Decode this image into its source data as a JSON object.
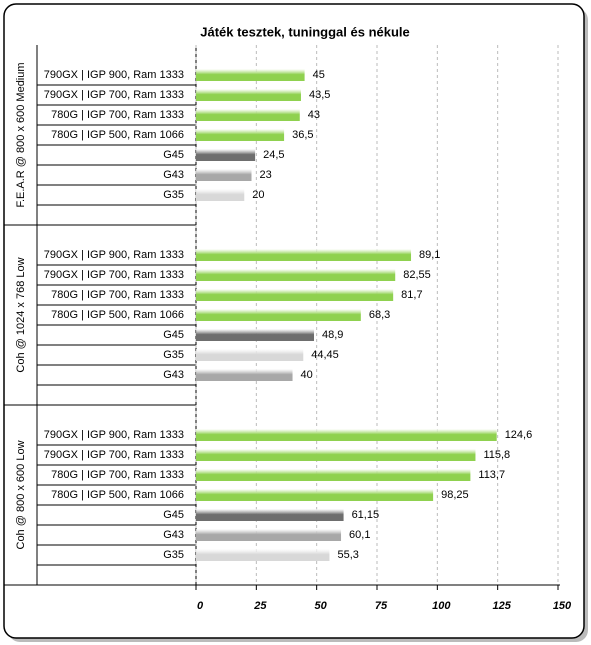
{
  "chart_data": {
    "type": "bar",
    "title": "Játék tesztek, tuninggal és nékule",
    "groups": [
      {
        "name": "F.E.A.R @ 800 x 600 Medium",
        "categories": [
          "790GX | IGP 900, Ram 1333",
          "790GX | IGP 700, Ram 1333",
          "780G | IGP 700, Ram 1333",
          "780G | IGP 500, Ram 1066",
          "G45",
          "G43",
          "G35"
        ],
        "values": [
          45,
          43.5,
          43,
          36.5,
          24.5,
          23,
          20
        ],
        "value_labels": [
          "45",
          "43,5",
          "43",
          "36,5",
          "24,5",
          "23",
          "20"
        ],
        "colors": [
          "#8fd14f",
          "#8fd14f",
          "#8fd14f",
          "#8fd14f",
          "#6e6e6e",
          "#a8a8a8",
          "#d8d8d8"
        ]
      },
      {
        "name": "Coh @ 1024 x 768 Low",
        "categories": [
          "790GX | IGP 900, Ram 1333",
          "790GX | IGP 700, Ram 1333",
          "780G | IGP 700, Ram 1333",
          "780G | IGP 500, Ram 1066",
          "G45",
          "G35",
          "G43"
        ],
        "values": [
          89.1,
          82.55,
          81.7,
          68.3,
          48.9,
          44.45,
          40
        ],
        "value_labels": [
          "89,1",
          "82,55",
          "81,7",
          "68,3",
          "48,9",
          "44,45",
          "40"
        ],
        "colors": [
          "#8fd14f",
          "#8fd14f",
          "#8fd14f",
          "#8fd14f",
          "#6e6e6e",
          "#d8d8d8",
          "#a8a8a8"
        ]
      },
      {
        "name": "Coh @ 800 x 600 Low",
        "categories": [
          "790GX | IGP 900, Ram 1333",
          "790GX | IGP 700, Ram 1333",
          "780G | IGP 700, Ram 1333",
          "780G | IGP 500, Ram 1066",
          "G45",
          "G43",
          "G35"
        ],
        "values": [
          124.6,
          115.8,
          113.7,
          98.25,
          61.15,
          60.1,
          55.3
        ],
        "value_labels": [
          "124,6",
          "115,8",
          "113,7",
          "98,25",
          "61,15",
          "60,1",
          "55,3"
        ],
        "colors": [
          "#8fd14f",
          "#8fd14f",
          "#8fd14f",
          "#8fd14f",
          "#6e6e6e",
          "#a8a8a8",
          "#d8d8d8"
        ]
      }
    ],
    "xlim": [
      0,
      150
    ],
    "xticks": [
      0,
      25,
      50,
      75,
      100,
      125,
      150
    ],
    "grid": true
  }
}
